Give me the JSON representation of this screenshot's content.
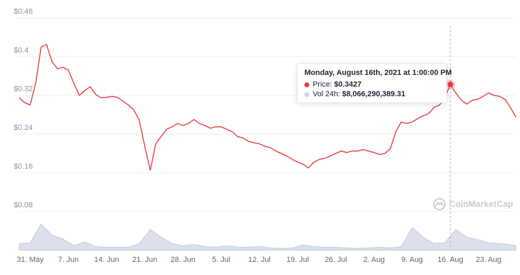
{
  "chart_data": {
    "type": "line",
    "y_tick_labels": [
      "$0.08",
      "$0.16",
      "$0.24",
      "$0.32",
      "$0.4",
      "$0.48"
    ],
    "y_ticks": [
      0.08,
      0.16,
      0.24,
      0.32,
      0.4,
      0.48
    ],
    "ylim": [
      0.0,
      0.51
    ],
    "x_tick_labels": [
      "31. May",
      "7. Jun",
      "14. Jun",
      "21. Jun",
      "28. Jun",
      "5. Jul",
      "12. Jul",
      "19. Jul",
      "26. Jul",
      "2. Aug",
      "9. Aug",
      "16. Aug",
      "23. Aug"
    ],
    "x_tick_dates": [
      "2021-05-31",
      "2021-06-07",
      "2021-06-14",
      "2021-06-21",
      "2021-06-28",
      "2021-07-05",
      "2021-07-12",
      "2021-07-19",
      "2021-07-26",
      "2021-08-02",
      "2021-08-09",
      "2021-08-16",
      "2021-08-23"
    ],
    "xlim": [
      "2021-05-29",
      "2021-08-28"
    ],
    "grid": "horizontal",
    "colors": {
      "price": "#ea3943",
      "volume": "#cfd6e4"
    },
    "price": {
      "x": [
        "2021-05-29",
        "2021-05-30",
        "2021-05-31",
        "2021-06-01",
        "2021-06-02",
        "2021-06-03",
        "2021-06-04",
        "2021-06-05",
        "2021-06-06",
        "2021-06-07",
        "2021-06-08",
        "2021-06-09",
        "2021-06-10",
        "2021-06-11",
        "2021-06-12",
        "2021-06-13",
        "2021-06-14",
        "2021-06-15",
        "2021-06-16",
        "2021-06-17",
        "2021-06-18",
        "2021-06-19",
        "2021-06-20",
        "2021-06-21",
        "2021-06-22",
        "2021-06-23",
        "2021-06-24",
        "2021-06-25",
        "2021-06-26",
        "2021-06-27",
        "2021-06-28",
        "2021-06-29",
        "2021-06-30",
        "2021-07-01",
        "2021-07-02",
        "2021-07-03",
        "2021-07-04",
        "2021-07-05",
        "2021-07-06",
        "2021-07-07",
        "2021-07-08",
        "2021-07-09",
        "2021-07-10",
        "2021-07-11",
        "2021-07-12",
        "2021-07-13",
        "2021-07-14",
        "2021-07-15",
        "2021-07-16",
        "2021-07-17",
        "2021-07-18",
        "2021-07-19",
        "2021-07-20",
        "2021-07-21",
        "2021-07-22",
        "2021-07-23",
        "2021-07-24",
        "2021-07-25",
        "2021-07-26",
        "2021-07-27",
        "2021-07-28",
        "2021-07-29",
        "2021-07-30",
        "2021-07-31",
        "2021-08-01",
        "2021-08-02",
        "2021-08-03",
        "2021-08-04",
        "2021-08-05",
        "2021-08-06",
        "2021-08-07",
        "2021-08-08",
        "2021-08-09",
        "2021-08-10",
        "2021-08-11",
        "2021-08-12",
        "2021-08-13",
        "2021-08-14",
        "2021-08-15",
        "2021-08-16",
        "2021-08-17",
        "2021-08-18",
        "2021-08-19",
        "2021-08-20",
        "2021-08-21",
        "2021-08-22",
        "2021-08-23",
        "2021-08-24",
        "2021-08-25",
        "2021-08-26",
        "2021-08-27",
        "2021-08-28"
      ],
      "y": [
        0.315,
        0.305,
        0.3,
        0.345,
        0.42,
        0.425,
        0.39,
        0.375,
        0.378,
        0.372,
        0.345,
        0.32,
        0.33,
        0.338,
        0.322,
        0.315,
        0.316,
        0.318,
        0.316,
        0.308,
        0.3,
        0.29,
        0.268,
        0.215,
        0.165,
        0.22,
        0.235,
        0.25,
        0.255,
        0.262,
        0.258,
        0.262,
        0.27,
        0.262,
        0.258,
        0.252,
        0.255,
        0.255,
        0.25,
        0.245,
        0.235,
        0.232,
        0.225,
        0.222,
        0.22,
        0.215,
        0.212,
        0.205,
        0.2,
        0.195,
        0.188,
        0.182,
        0.178,
        0.17,
        0.182,
        0.188,
        0.19,
        0.195,
        0.2,
        0.205,
        0.202,
        0.205,
        0.205,
        0.208,
        0.205,
        0.202,
        0.198,
        0.2,
        0.21,
        0.245,
        0.265,
        0.262,
        0.265,
        0.272,
        0.278,
        0.282,
        0.295,
        0.3,
        0.315,
        0.343,
        0.325,
        0.31,
        0.302,
        0.31,
        0.312,
        0.318,
        0.325,
        0.32,
        0.318,
        0.312,
        0.295,
        0.275
      ]
    },
    "volume": {
      "x": [
        "2021-05-29",
        "2021-05-31",
        "2021-06-02",
        "2021-06-04",
        "2021-06-06",
        "2021-06-08",
        "2021-06-10",
        "2021-06-12",
        "2021-06-14",
        "2021-06-16",
        "2021-06-18",
        "2021-06-20",
        "2021-06-22",
        "2021-06-24",
        "2021-06-26",
        "2021-06-28",
        "2021-06-30",
        "2021-07-02",
        "2021-07-04",
        "2021-07-06",
        "2021-07-08",
        "2021-07-10",
        "2021-07-12",
        "2021-07-14",
        "2021-07-16",
        "2021-07-18",
        "2021-07-20",
        "2021-07-22",
        "2021-07-24",
        "2021-07-26",
        "2021-07-28",
        "2021-07-30",
        "2021-08-01",
        "2021-08-03",
        "2021-08-05",
        "2021-08-07",
        "2021-08-09",
        "2021-08-11",
        "2021-08-13",
        "2021-08-15",
        "2021-08-17",
        "2021-08-19",
        "2021-08-21",
        "2021-08-23",
        "2021-08-25",
        "2021-08-27",
        "2021-08-28"
      ],
      "y": [
        0.18,
        0.2,
        0.7,
        0.4,
        0.3,
        0.12,
        0.22,
        0.1,
        0.08,
        0.08,
        0.08,
        0.18,
        0.55,
        0.35,
        0.18,
        0.12,
        0.15,
        0.1,
        0.08,
        0.12,
        0.09,
        0.08,
        0.1,
        0.06,
        0.05,
        0.06,
        0.14,
        0.1,
        0.08,
        0.08,
        0.06,
        0.05,
        0.06,
        0.08,
        0.06,
        0.1,
        0.6,
        0.35,
        0.18,
        0.2,
        0.55,
        0.35,
        0.28,
        0.2,
        0.18,
        0.15,
        0.12
      ]
    },
    "marker": {
      "x": "2021-08-16",
      "y": 0.3427
    }
  },
  "tooltip": {
    "title": "Monday, August 16th, 2021 at 1:00:00 PM",
    "price_label": "Price:",
    "price_value": "$0.3427",
    "vol_label": "Vol 24h:",
    "vol_value": "$8,066,290,389.31"
  },
  "watermark": {
    "text": "CoinMarketCap",
    "icon": "coinmarketcap-logo-icon"
  }
}
